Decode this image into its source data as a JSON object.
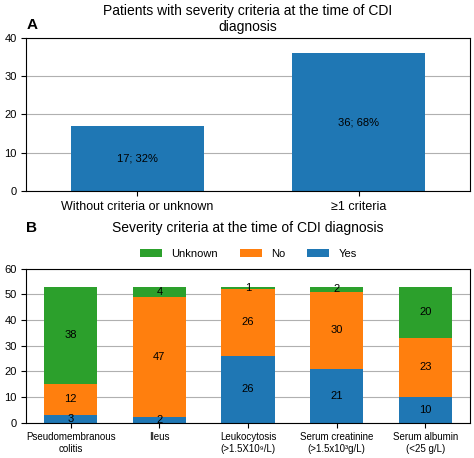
{
  "chart_data": [
    {
      "type": "bar",
      "title": "Patients with severity criteria at the time of CDI\ndiagnosis",
      "annotations": [
        "A"
      ],
      "categories": [
        "Without criteria or unknown",
        "≥1 criteria"
      ],
      "values": [
        17,
        36
      ],
      "value_labels": [
        "17; 32%",
        "36; 68%"
      ],
      "data_labels": true,
      "ylim": [
        0,
        40
      ],
      "yticks": [
        0,
        10,
        20,
        30,
        40
      ],
      "grid": true
    },
    {
      "type": "bar",
      "title": "Severity criteria at the time of CDI diagnosis",
      "annotations": [
        "B"
      ],
      "categories": [
        "Pseudomembranous\ncolitis",
        "Ileus",
        "Leukocytosis\n(>1.5X10⁹/L)",
        "Serum creatinine\n(>1.5x10³g/L)",
        "Serum albumin\n(<25 g/L)"
      ],
      "series": [
        {
          "name": "Yes",
          "values": [
            3,
            2,
            26,
            21,
            10
          ]
        },
        {
          "name": "No",
          "values": [
            12,
            47,
            26,
            30,
            23
          ]
        },
        {
          "name": "Unknown",
          "values": [
            38,
            4,
            1,
            2,
            20
          ]
        }
      ],
      "stacked": true,
      "data_labels": true,
      "legend": "lower center",
      "ylim": [
        0,
        60
      ],
      "yticks": [
        0,
        10,
        20,
        30,
        40,
        50,
        60
      ],
      "grid": true
    }
  ]
}
